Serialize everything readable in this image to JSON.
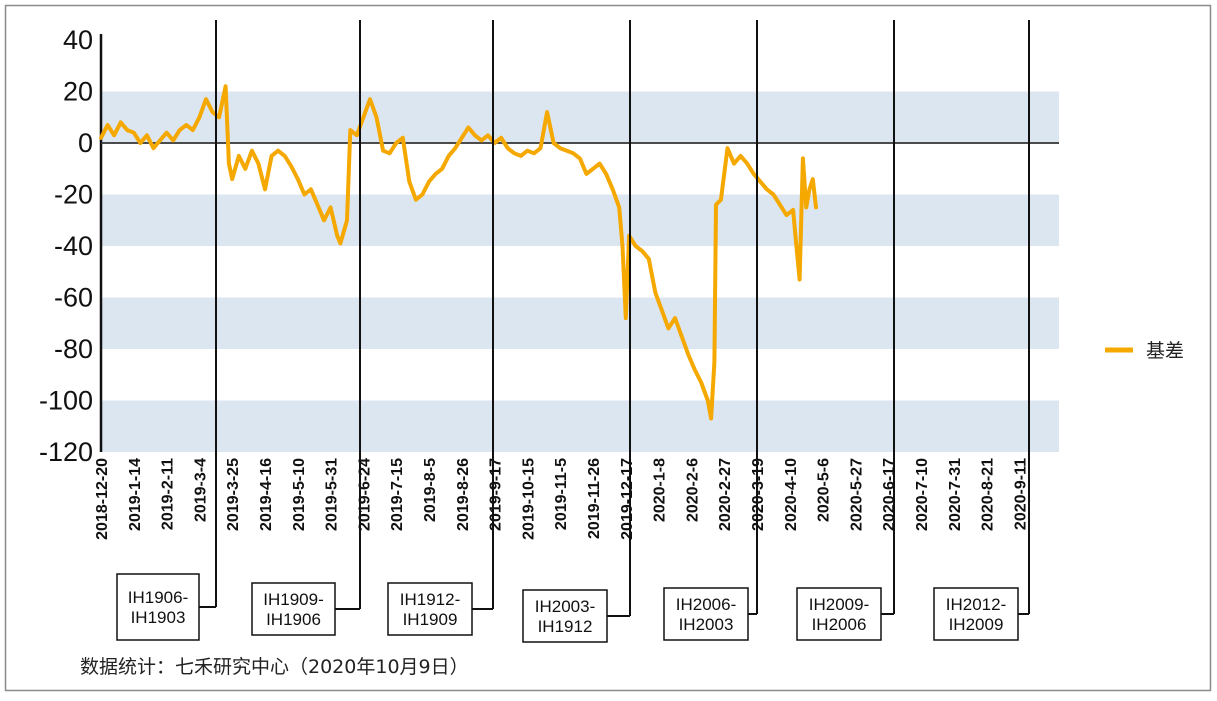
{
  "chart_data": {
    "type": "line",
    "title": "",
    "xlabel": "",
    "ylabel": "",
    "ylim": [
      -120,
      40
    ],
    "y_ticks": [
      40,
      20,
      0,
      -20,
      -40,
      -60,
      -80,
      -100,
      -120
    ],
    "shaded_bands": [
      [
        0,
        20
      ],
      [
        -40,
        -20
      ],
      [
        -80,
        -60
      ],
      [
        -120,
        -100
      ]
    ],
    "x_tick_labels": [
      "2018-12-20",
      "2019-1-14",
      "2019-2-11",
      "2019-3-4",
      "2019-3-25",
      "2019-4-16",
      "2019-5-10",
      "2019-5-31",
      "2019-6-24",
      "2019-7-15",
      "2019-8-5",
      "2019-8-26",
      "2019-9-17",
      "2019-10-15",
      "2019-11-5",
      "2019-11-26",
      "2019-12-17",
      "2020-1-8",
      "2020-2-6",
      "2020-2-27",
      "2020-3-19",
      "2020-4-10",
      "2020-5-6",
      "2020-5-27",
      "2020-6-17",
      "2020-7-10",
      "2020-7-31",
      "2020-8-21",
      "2020-9-11"
    ],
    "legend_position": "right",
    "series": [
      {
        "name": "基差",
        "color": "#F5A800",
        "points": [
          [
            0,
            2
          ],
          [
            0.2,
            7
          ],
          [
            0.4,
            3
          ],
          [
            0.6,
            8
          ],
          [
            0.8,
            5
          ],
          [
            1.0,
            4
          ],
          [
            1.2,
            0
          ],
          [
            1.4,
            3
          ],
          [
            1.6,
            -2
          ],
          [
            1.8,
            1
          ],
          [
            2.0,
            4
          ],
          [
            2.2,
            1
          ],
          [
            2.4,
            5
          ],
          [
            2.6,
            7
          ],
          [
            2.8,
            5
          ],
          [
            3.0,
            10
          ],
          [
            3.2,
            17
          ],
          [
            3.4,
            12
          ],
          [
            3.6,
            10
          ],
          [
            3.8,
            22
          ],
          [
            3.9,
            -8
          ],
          [
            4.0,
            -14
          ],
          [
            4.2,
            -5
          ],
          [
            4.4,
            -10
          ],
          [
            4.6,
            -3
          ],
          [
            4.8,
            -8
          ],
          [
            5.0,
            -18
          ],
          [
            5.2,
            -5
          ],
          [
            5.4,
            -3
          ],
          [
            5.6,
            -5
          ],
          [
            5.8,
            -9
          ],
          [
            6.0,
            -14
          ],
          [
            6.2,
            -20
          ],
          [
            6.4,
            -18
          ],
          [
            6.6,
            -24
          ],
          [
            6.8,
            -30
          ],
          [
            7.0,
            -25
          ],
          [
            7.2,
            -36
          ],
          [
            7.3,
            -39
          ],
          [
            7.5,
            -30
          ],
          [
            7.6,
            5
          ],
          [
            7.8,
            3
          ],
          [
            8.0,
            10
          ],
          [
            8.2,
            17
          ],
          [
            8.4,
            10
          ],
          [
            8.6,
            -3
          ],
          [
            8.8,
            -4
          ],
          [
            9.0,
            0
          ],
          [
            9.2,
            2
          ],
          [
            9.4,
            -15
          ],
          [
            9.6,
            -22
          ],
          [
            9.8,
            -20
          ],
          [
            10.0,
            -15
          ],
          [
            10.2,
            -12
          ],
          [
            10.4,
            -10
          ],
          [
            10.6,
            -5
          ],
          [
            10.8,
            -2
          ],
          [
            11.0,
            2
          ],
          [
            11.2,
            6
          ],
          [
            11.4,
            3
          ],
          [
            11.6,
            1
          ],
          [
            11.8,
            3
          ],
          [
            12.0,
            0
          ],
          [
            12.2,
            2
          ],
          [
            12.4,
            -2
          ],
          [
            12.6,
            -4
          ],
          [
            12.8,
            -5
          ],
          [
            13.0,
            -3
          ],
          [
            13.2,
            -4
          ],
          [
            13.4,
            -2
          ],
          [
            13.6,
            12
          ],
          [
            13.8,
            0
          ],
          [
            14.0,
            -2
          ],
          [
            14.2,
            -3
          ],
          [
            14.4,
            -4
          ],
          [
            14.6,
            -6
          ],
          [
            14.8,
            -12
          ],
          [
            15.0,
            -10
          ],
          [
            15.2,
            -8
          ],
          [
            15.4,
            -12
          ],
          [
            15.6,
            -18
          ],
          [
            15.8,
            -25
          ],
          [
            15.9,
            -40
          ],
          [
            16.0,
            -68
          ],
          [
            16.1,
            -36
          ],
          [
            16.3,
            -40
          ],
          [
            16.5,
            -42
          ],
          [
            16.7,
            -45
          ],
          [
            16.9,
            -58
          ],
          [
            17.1,
            -65
          ],
          [
            17.3,
            -72
          ],
          [
            17.5,
            -68
          ],
          [
            17.7,
            -75
          ],
          [
            17.9,
            -82
          ],
          [
            18.1,
            -88
          ],
          [
            18.3,
            -93
          ],
          [
            18.5,
            -100
          ],
          [
            18.6,
            -107
          ],
          [
            18.7,
            -85
          ],
          [
            18.75,
            -24
          ],
          [
            18.9,
            -22
          ],
          [
            19.1,
            -2
          ],
          [
            19.3,
            -8
          ],
          [
            19.5,
            -5
          ],
          [
            19.7,
            -8
          ],
          [
            19.9,
            -12
          ],
          [
            20.1,
            -15
          ],
          [
            20.3,
            -18
          ],
          [
            20.5,
            -20
          ],
          [
            20.7,
            -24
          ],
          [
            20.9,
            -28
          ],
          [
            21.1,
            -26
          ],
          [
            21.2,
            -40
          ],
          [
            21.3,
            -53
          ],
          [
            21.4,
            -6
          ],
          [
            21.5,
            -25
          ],
          [
            21.6,
            -18
          ],
          [
            21.7,
            -14
          ],
          [
            21.8,
            -25
          ]
        ]
      }
    ],
    "callouts": [
      {
        "label_lines": [
          "IH1906-",
          "IH1903"
        ]
      },
      {
        "label_lines": [
          "IH1909-",
          "IH1906"
        ]
      },
      {
        "label_lines": [
          "IH1912-",
          "IH1909"
        ]
      },
      {
        "label_lines": [
          "IH2003-",
          "IH1912"
        ]
      },
      {
        "label_lines": [
          "IH2006-",
          "IH2003"
        ]
      },
      {
        "label_lines": [
          "IH2009-",
          "IH2006"
        ]
      },
      {
        "label_lines": [
          "IH2012-",
          "IH2009"
        ]
      }
    ]
  },
  "source_note": "数据统计：七禾研究中心（2020年10月9日）",
  "legend": {
    "label": "基差"
  }
}
